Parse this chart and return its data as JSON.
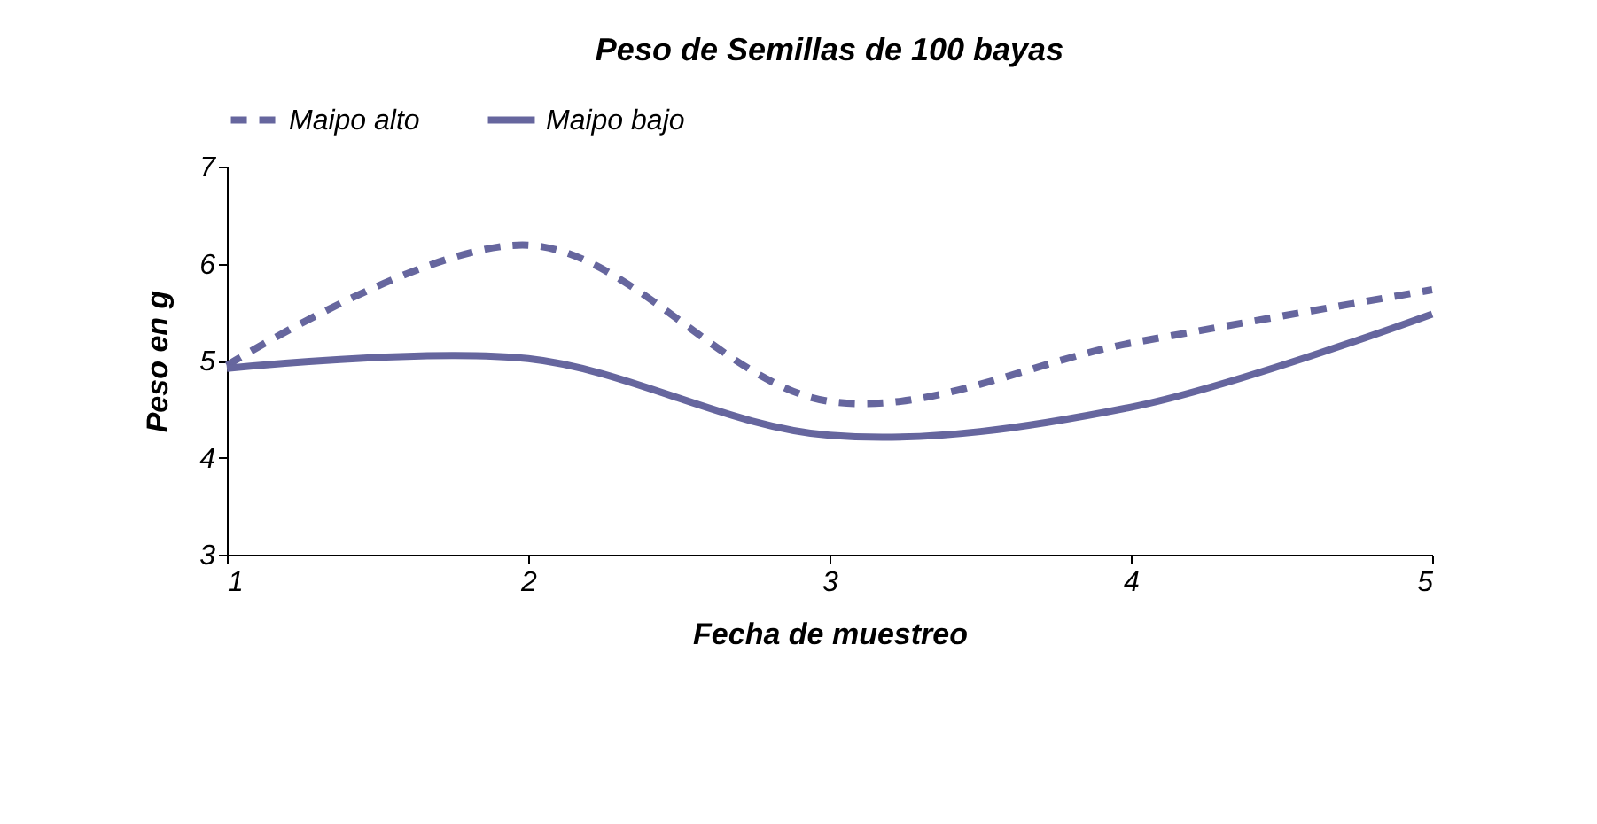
{
  "chart_data": {
    "type": "line",
    "title": "Peso de Semillas de 100 bayas",
    "xlabel": "Fecha de muestreo",
    "ylabel": "Peso en g",
    "x": [
      1,
      2,
      3,
      4,
      5
    ],
    "series": [
      {
        "name": "Maipo alto",
        "color": "#66669e",
        "line_style": "dashed",
        "values": [
          4.95,
          6.19,
          4.58,
          5.18,
          5.73
        ]
      },
      {
        "name": "Maipo bajo",
        "color": "#66669e",
        "line_style": "solid",
        "values": [
          4.92,
          5.02,
          4.23,
          4.52,
          5.48
        ]
      }
    ],
    "xlim": [
      1,
      5
    ],
    "xticks": [
      1,
      2,
      3,
      4,
      5
    ],
    "ylim": [
      3,
      7
    ],
    "yticks": [
      3,
      4,
      5,
      6,
      7
    ],
    "grid": false,
    "legend": "top",
    "marker": "none"
  }
}
